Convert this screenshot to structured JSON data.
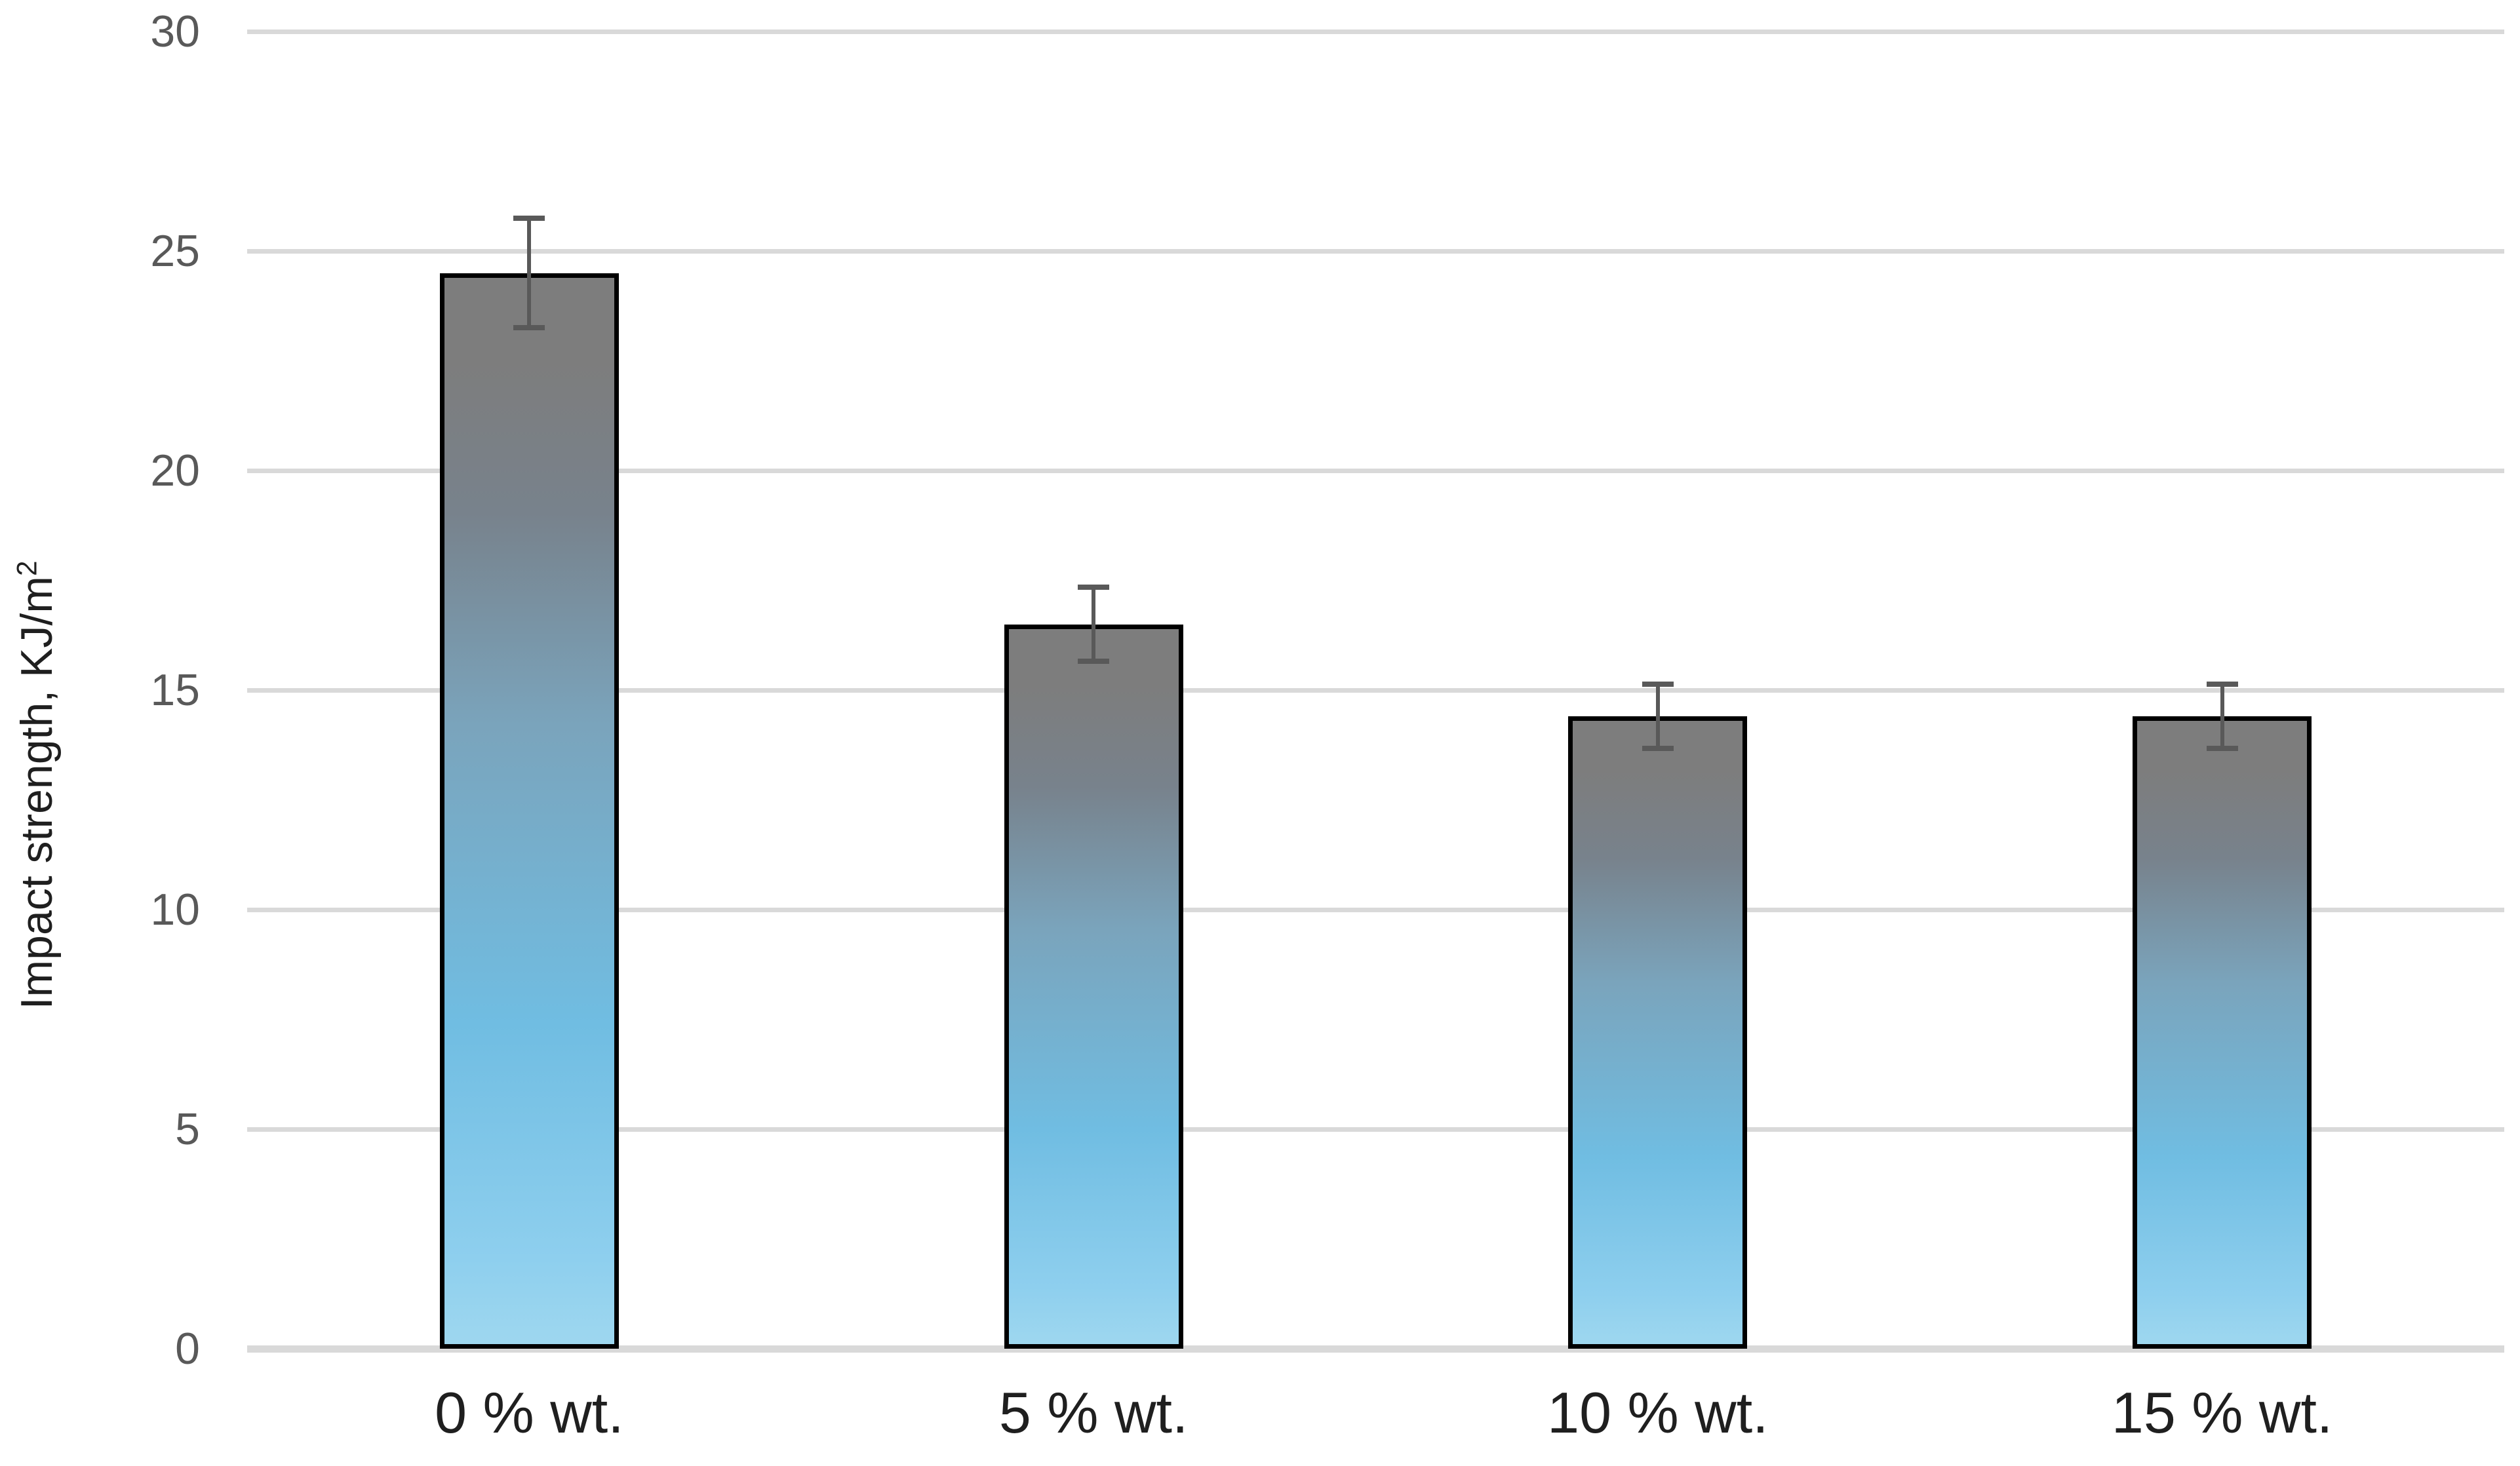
{
  "chart_data": {
    "type": "bar",
    "title": "",
    "xlabel": "",
    "ylabel": "Impact strength, KJ/m²",
    "ylabel_base": "Impact strength, KJ/m",
    "ylabel_sup": "2",
    "categories": [
      "0 % wt.",
      "5 % wt.",
      "10 % wt.",
      "15 % wt."
    ],
    "values": [
      24.5,
      16.5,
      14.4,
      14.4
    ],
    "error_bars": [
      1.25,
      0.85,
      0.73,
      0.73
    ],
    "ylim": [
      0,
      30
    ],
    "yticks": [
      0,
      5,
      10,
      15,
      20,
      25,
      30
    ],
    "grid": true,
    "legend": false,
    "background": "#ffffff"
  },
  "colors": {
    "gridline": "#d9d9d9",
    "tick_label": "#595959",
    "text_label": "#1f1f1f",
    "bar_border": "#000000",
    "error_bar": "#595959",
    "bar_gradient_stops": [
      "#7d7d7d 0%",
      "#7d7d7d 8%",
      "#78828c 22%",
      "#7aa4bc 42%",
      "#70bde2 70%",
      "#8ecfee 92%",
      "#9ed7ef 100%"
    ]
  }
}
